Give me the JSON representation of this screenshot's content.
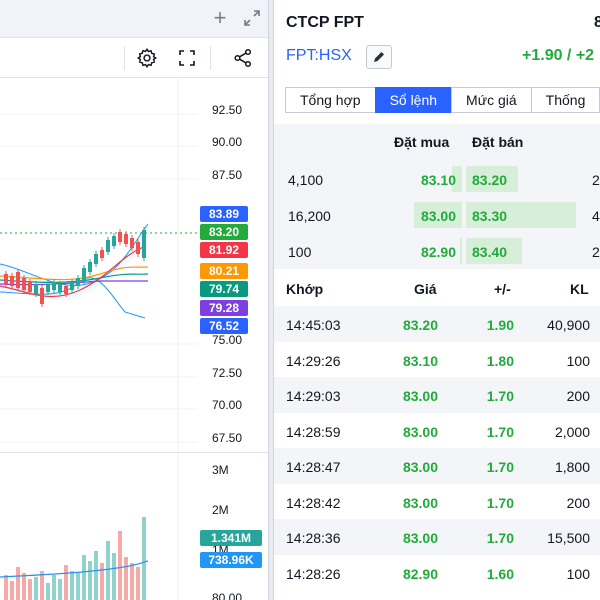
{
  "chart": {
    "price_axis": [
      "92.50",
      "90.00",
      "87.50",
      "75.00",
      "72.50",
      "70.00",
      "67.50"
    ],
    "volume_axis": [
      "3M",
      "2M",
      "1M",
      "80.00"
    ],
    "price_tags": [
      {
        "label": "83.89",
        "color": "#2962ff"
      },
      {
        "label": "83.20",
        "color": "#22ab3b"
      },
      {
        "label": "81.92",
        "color": "#f23645"
      },
      {
        "label": "80.21",
        "color": "#ff9800"
      },
      {
        "label": "79.74",
        "color": "#089981"
      },
      {
        "label": "79.28",
        "color": "#7e3fe0"
      },
      {
        "label": "76.52",
        "color": "#2962ff"
      }
    ],
    "volume_tags": [
      {
        "label": "1.341M",
        "color": "#26a69a"
      },
      {
        "label": "738.96K",
        "color": "#2196f3"
      }
    ],
    "icons": {
      "add": "plus-icon",
      "fullscreen": "expand-icon",
      "settings": "gear-icon",
      "fit": "fullscreen-icon",
      "share": "share-icon"
    }
  },
  "stock": {
    "company": "CTCP FPT",
    "price_partial": "8",
    "symbol": "FPT:HSX",
    "change": "+1.90 / +2",
    "up_color": "#22ab3b"
  },
  "tabs": [
    {
      "label": "Tổng hợp",
      "active": false
    },
    {
      "label": "Sổ lệnh",
      "active": true
    },
    {
      "label": "Mức giá",
      "active": false
    },
    {
      "label": "Thống",
      "active": false
    }
  ],
  "orderbook": {
    "bid_header": "Đặt mua",
    "ask_header": "Đặt bán",
    "rows": [
      {
        "bid_qty": "4,100",
        "bid": "83.10",
        "ask": "83.20",
        "ask_qty": "2"
      },
      {
        "bid_qty": "16,200",
        "bid": "83.00",
        "ask": "83.30",
        "ask_qty": "4"
      },
      {
        "bid_qty": "100",
        "bid": "82.90",
        "ask": "83.40",
        "ask_qty": "2"
      }
    ]
  },
  "trades": {
    "headers": {
      "time": "Khớp",
      "price": "Giá",
      "change": "+/-",
      "volume": "KL"
    },
    "rows": [
      {
        "time": "14:45:03",
        "price": "83.20",
        "change": "1.90",
        "volume": "40,900"
      },
      {
        "time": "14:29:26",
        "price": "83.10",
        "change": "1.80",
        "volume": "100"
      },
      {
        "time": "14:29:03",
        "price": "83.00",
        "change": "1.70",
        "volume": "200"
      },
      {
        "time": "14:28:59",
        "price": "83.00",
        "change": "1.70",
        "volume": "2,000"
      },
      {
        "time": "14:28:47",
        "price": "83.00",
        "change": "1.70",
        "volume": "1,800"
      },
      {
        "time": "14:28:42",
        "price": "83.00",
        "change": "1.70",
        "volume": "200"
      },
      {
        "time": "14:28:36",
        "price": "83.00",
        "change": "1.70",
        "volume": "15,500"
      },
      {
        "time": "14:28:26",
        "price": "82.90",
        "change": "1.60",
        "volume": "100"
      }
    ]
  }
}
